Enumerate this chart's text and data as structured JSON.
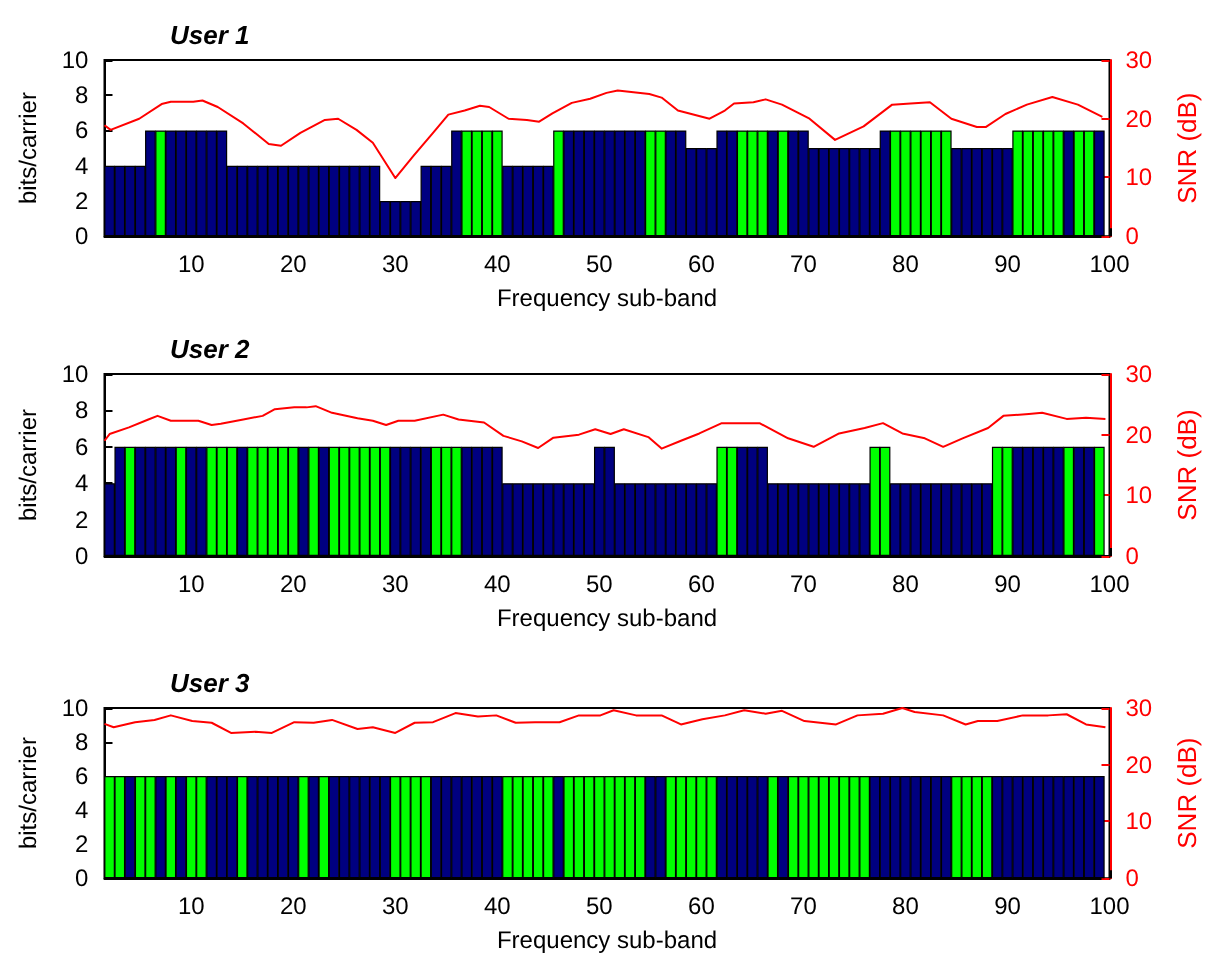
{
  "chart_data": [
    {
      "type": "bar",
      "title": "User 1",
      "xlabel": "Frequency sub-band",
      "ylabel": "bits/carrier",
      "y2label": "SNR (dB)",
      "x": [
        2,
        3,
        4,
        5,
        6,
        7,
        8,
        9,
        10,
        11,
        12,
        13,
        14,
        15,
        16,
        17,
        18,
        19,
        20,
        21,
        22,
        23,
        24,
        25,
        26,
        27,
        28,
        29,
        30,
        31,
        32,
        33,
        34,
        35,
        36,
        37,
        38,
        39,
        40,
        41,
        42,
        43,
        44,
        45,
        46,
        47,
        48,
        49,
        50,
        51,
        52,
        53,
        54,
        55,
        56,
        57,
        58,
        59,
        60,
        61,
        62,
        63,
        64,
        65,
        66,
        67,
        68,
        69,
        70,
        71,
        72,
        73,
        74,
        75,
        76,
        77,
        78,
        79,
        80,
        81,
        82,
        83,
        84,
        85,
        86,
        87,
        88,
        89,
        90,
        91,
        92,
        93,
        94,
        95,
        96,
        97,
        98,
        99
      ],
      "xlim": [
        1.5,
        100
      ],
      "xticks": [
        10,
        20,
        30,
        40,
        50,
        60,
        70,
        80,
        90,
        100
      ],
      "ylim": [
        0,
        10
      ],
      "yticks": [
        0,
        2,
        4,
        6,
        8,
        10
      ],
      "y2lim": [
        0,
        30
      ],
      "y2ticks": [
        0,
        10,
        20,
        30
      ],
      "series": [
        {
          "type": "bar",
          "values": [
            4,
            4,
            4,
            4,
            6,
            6,
            6,
            6,
            6,
            6,
            6,
            6,
            4,
            4,
            4,
            4,
            4,
            4,
            4,
            4,
            4,
            4,
            4,
            4,
            4,
            4,
            4,
            2,
            2,
            2,
            2,
            4,
            4,
            4,
            6,
            6,
            6,
            6,
            6,
            4,
            4,
            4,
            4,
            4,
            6,
            6,
            6,
            6,
            6,
            6,
            6,
            6,
            6,
            6,
            6,
            6,
            6,
            5,
            5,
            5,
            6,
            6,
            6,
            6,
            6,
            6,
            6,
            6,
            6,
            5,
            5,
            5,
            5,
            5,
            5,
            5,
            6,
            6,
            6,
            6,
            6,
            6,
            6,
            5,
            5,
            5,
            5,
            5,
            5,
            6,
            6,
            6,
            6,
            6,
            6,
            6,
            6,
            6
          ],
          "colors": [
            "#000080",
            "#000080",
            "#000080",
            "#000080",
            "#000080",
            "#00ff00",
            "#000080",
            "#000080",
            "#000080",
            "#000080",
            "#000080",
            "#000080",
            "#000080",
            "#000080",
            "#000080",
            "#000080",
            "#000080",
            "#000080",
            "#000080",
            "#000080",
            "#000080",
            "#000080",
            "#000080",
            "#000080",
            "#000080",
            "#000080",
            "#000080",
            "#000080",
            "#000080",
            "#000080",
            "#000080",
            "#000080",
            "#000080",
            "#000080",
            "#000080",
            "#00ff00",
            "#00ff00",
            "#00ff00",
            "#00ff00",
            "#000080",
            "#000080",
            "#000080",
            "#000080",
            "#000080",
            "#00ff00",
            "#000080",
            "#000080",
            "#000080",
            "#000080",
            "#000080",
            "#000080",
            "#000080",
            "#000080",
            "#00ff00",
            "#00ff00",
            "#000080",
            "#000080",
            "#000080",
            "#000080",
            "#000080",
            "#000080",
            "#000080",
            "#00ff00",
            "#00ff00",
            "#00ff00",
            "#000080",
            "#00ff00",
            "#000080",
            "#000080",
            "#000080",
            "#000080",
            "#000080",
            "#000080",
            "#000080",
            "#000080",
            "#000080",
            "#000080",
            "#00ff00",
            "#00ff00",
            "#00ff00",
            "#00ff00",
            "#00ff00",
            "#00ff00",
            "#000080",
            "#000080",
            "#000080",
            "#000080",
            "#000080",
            "#000080",
            "#00ff00",
            "#00ff00",
            "#00ff00",
            "#00ff00",
            "#00ff00",
            "#000080",
            "#00ff00",
            "#00ff00",
            "#000080"
          ]
        },
        {
          "type": "line",
          "axis": "y2",
          "color": "#ff0000",
          "x": [
            1.5,
            2.1,
            4.9,
            7.1,
            8,
            10.2,
            11.1,
            12.6,
            15.1,
            17.6,
            18.8,
            20.7,
            23.1,
            24.4,
            26.2,
            27.8,
            30,
            31.8,
            33.7,
            35.2,
            36.8,
            38.3,
            39.2,
            41.1,
            42.9,
            44.1,
            45.4,
            47.3,
            49.1,
            50.7,
            51.8,
            54.9,
            56.1,
            57.7,
            60.8,
            62.3,
            63.2,
            65.1,
            66.3,
            67.9,
            70.6,
            73.1,
            75.9,
            78.7,
            80.5,
            82.4,
            84.5,
            87,
            87.9,
            89.8,
            91.9,
            94.4,
            96.9,
            99.3
          ],
          "values": [
            18.9,
            18.1,
            20,
            22.5,
            22.9,
            22.9,
            23.1,
            22,
            19.2,
            15.7,
            15.4,
            17.6,
            19.8,
            20,
            18.1,
            15.9,
            9.9,
            13.7,
            17.6,
            20.7,
            21.4,
            22.2,
            22,
            20,
            19.8,
            19.5,
            20.9,
            22.7,
            23.4,
            24.4,
            24.8,
            24.2,
            23.6,
            21.4,
            20,
            21.4,
            22.6,
            22.8,
            23.3,
            22.4,
            20,
            16.4,
            18.7,
            22.4,
            22.6,
            22.8,
            20,
            18.6,
            18.6,
            20.8,
            22.4,
            23.7,
            22.4,
            20.3
          ]
        }
      ]
    },
    {
      "type": "bar",
      "title": "User 2",
      "xlabel": "Frequency sub-band",
      "ylabel": "bits/carrier",
      "y2label": "SNR (dB)",
      "x": [
        2,
        3,
        4,
        5,
        6,
        7,
        8,
        9,
        10,
        11,
        12,
        13,
        14,
        15,
        16,
        17,
        18,
        19,
        20,
        21,
        22,
        23,
        24,
        25,
        26,
        27,
        28,
        29,
        30,
        31,
        32,
        33,
        34,
        35,
        36,
        37,
        38,
        39,
        40,
        41,
        42,
        43,
        44,
        45,
        46,
        47,
        48,
        49,
        50,
        51,
        52,
        53,
        54,
        55,
        56,
        57,
        58,
        59,
        60,
        61,
        62,
        63,
        64,
        65,
        66,
        67,
        68,
        69,
        70,
        71,
        72,
        73,
        74,
        75,
        76,
        77,
        78,
        79,
        80,
        81,
        82,
        83,
        84,
        85,
        86,
        87,
        88,
        89,
        90,
        91,
        92,
        93,
        94,
        95,
        96,
        97,
        98,
        99
      ],
      "xlim": [
        1.5,
        100
      ],
      "xticks": [
        10,
        20,
        30,
        40,
        50,
        60,
        70,
        80,
        90,
        100
      ],
      "ylim": [
        0,
        10
      ],
      "yticks": [
        0,
        2,
        4,
        6,
        8,
        10
      ],
      "y2lim": [
        0,
        30
      ],
      "y2ticks": [
        0,
        10,
        20,
        30
      ],
      "series": [
        {
          "type": "bar",
          "values": [
            4,
            6,
            6,
            6,
            6,
            6,
            6,
            6,
            6,
            6,
            6,
            6,
            6,
            6,
            6,
            6,
            6,
            6,
            6,
            6,
            6,
            6,
            6,
            6,
            6,
            6,
            6,
            6,
            6,
            6,
            6,
            6,
            6,
            6,
            6,
            6,
            6,
            6,
            6,
            4,
            4,
            4,
            4,
            4,
            4,
            4,
            4,
            4,
            6,
            6,
            4,
            4,
            4,
            4,
            4,
            4,
            4,
            4,
            4,
            4,
            6,
            6,
            6,
            6,
            6,
            4,
            4,
            4,
            4,
            4,
            4,
            4,
            4,
            4,
            4,
            6,
            6,
            4,
            4,
            4,
            4,
            4,
            4,
            4,
            4,
            4,
            4,
            6,
            6,
            6,
            6,
            6,
            6,
            6,
            6,
            6,
            6,
            6
          ],
          "colors": [
            "#000080",
            "#000080",
            "#00ff00",
            "#000080",
            "#000080",
            "#000080",
            "#000080",
            "#00ff00",
            "#000080",
            "#000080",
            "#00ff00",
            "#00ff00",
            "#00ff00",
            "#000080",
            "#00ff00",
            "#00ff00",
            "#00ff00",
            "#00ff00",
            "#00ff00",
            "#000080",
            "#00ff00",
            "#000080",
            "#00ff00",
            "#00ff00",
            "#00ff00",
            "#00ff00",
            "#00ff00",
            "#00ff00",
            "#000080",
            "#000080",
            "#000080",
            "#000080",
            "#00ff00",
            "#00ff00",
            "#00ff00",
            "#000080",
            "#000080",
            "#000080",
            "#000080",
            "#000080",
            "#000080",
            "#000080",
            "#000080",
            "#000080",
            "#000080",
            "#000080",
            "#000080",
            "#000080",
            "#000080",
            "#000080",
            "#000080",
            "#000080",
            "#000080",
            "#000080",
            "#000080",
            "#000080",
            "#000080",
            "#000080",
            "#000080",
            "#000080",
            "#00ff00",
            "#00ff00",
            "#000080",
            "#000080",
            "#000080",
            "#000080",
            "#000080",
            "#000080",
            "#000080",
            "#000080",
            "#000080",
            "#000080",
            "#000080",
            "#000080",
            "#000080",
            "#00ff00",
            "#00ff00",
            "#000080",
            "#000080",
            "#000080",
            "#000080",
            "#000080",
            "#000080",
            "#000080",
            "#000080",
            "#000080",
            "#000080",
            "#00ff00",
            "#00ff00",
            "#000080",
            "#000080",
            "#000080",
            "#000080",
            "#000080",
            "#00ff00",
            "#000080",
            "#000080",
            "#00ff00"
          ]
        },
        {
          "type": "line",
          "axis": "y2",
          "color": "#ff0000",
          "x": [
            1.5,
            2,
            3.9,
            5.8,
            6.7,
            8,
            10.7,
            12,
            12.9,
            15.1,
            17,
            18.2,
            20.1,
            21.3,
            22.2,
            23.8,
            26.3,
            27.8,
            29.1,
            30.3,
            31.9,
            34.7,
            36.2,
            38.7,
            40.6,
            42.4,
            44,
            45.5,
            48,
            49.6,
            51.1,
            52.4,
            54.8,
            56.1,
            58,
            59.8,
            62,
            65.7,
            68.5,
            71,
            73.5,
            76,
            77.8,
            79.7,
            81.9,
            83.7,
            85.6,
            88.1,
            89.6,
            92.1,
            93.4,
            95.8,
            97.7,
            99.6
          ],
          "values": [
            19,
            20.1,
            21.2,
            22.5,
            23.1,
            22.3,
            22.3,
            21.6,
            21.8,
            22.5,
            23.1,
            24.2,
            24.5,
            24.5,
            24.7,
            23.6,
            22.7,
            22.3,
            21.6,
            22.3,
            22.3,
            23.3,
            22.5,
            22,
            19.8,
            18.9,
            17.8,
            19.5,
            20,
            20.9,
            20.1,
            20.9,
            19.6,
            17.7,
            19,
            20.2,
            21.9,
            21.9,
            19.4,
            18,
            20.2,
            21.1,
            21.9,
            20.2,
            19.4,
            18,
            19.4,
            21.1,
            23.1,
            23.4,
            23.6,
            22.6,
            22.8,
            22.6
          ]
        }
      ]
    },
    {
      "type": "bar",
      "title": "User 3",
      "xlabel": "Frequency sub-band",
      "ylabel": "bits/carrier",
      "y2label": "SNR (dB)",
      "x": [
        2,
        3,
        4,
        5,
        6,
        7,
        8,
        9,
        10,
        11,
        12,
        13,
        14,
        15,
        16,
        17,
        18,
        19,
        20,
        21,
        22,
        23,
        24,
        25,
        26,
        27,
        28,
        29,
        30,
        31,
        32,
        33,
        34,
        35,
        36,
        37,
        38,
        39,
        40,
        41,
        42,
        43,
        44,
        45,
        46,
        47,
        48,
        49,
        50,
        51,
        52,
        53,
        54,
        55,
        56,
        57,
        58,
        59,
        60,
        61,
        62,
        63,
        64,
        65,
        66,
        67,
        68,
        69,
        70,
        71,
        72,
        73,
        74,
        75,
        76,
        77,
        78,
        79,
        80,
        81,
        82,
        83,
        84,
        85,
        86,
        87,
        88,
        89,
        90,
        91,
        92,
        93,
        94,
        95,
        96,
        97,
        98,
        99
      ],
      "xlim": [
        1.5,
        100
      ],
      "xticks": [
        10,
        20,
        30,
        40,
        50,
        60,
        70,
        80,
        90,
        100
      ],
      "ylim": [
        0,
        10
      ],
      "yticks": [
        0,
        2,
        4,
        6,
        8,
        10
      ],
      "y2lim": [
        0,
        30
      ],
      "y2ticks": [
        0,
        10,
        20,
        30
      ],
      "series": [
        {
          "type": "bar",
          "values": [
            6,
            6,
            6,
            6,
            6,
            6,
            6,
            6,
            6,
            6,
            6,
            6,
            6,
            6,
            6,
            6,
            6,
            6,
            6,
            6,
            6,
            6,
            6,
            6,
            6,
            6,
            6,
            6,
            6,
            6,
            6,
            6,
            6,
            6,
            6,
            6,
            6,
            6,
            6,
            6,
            6,
            6,
            6,
            6,
            6,
            6,
            6,
            6,
            6,
            6,
            6,
            6,
            6,
            6,
            6,
            6,
            6,
            6,
            6,
            6,
            6,
            6,
            6,
            6,
            6,
            6,
            6,
            6,
            6,
            6,
            6,
            6,
            6,
            6,
            6,
            6,
            6,
            6,
            6,
            6,
            6,
            6,
            6,
            6,
            6,
            6,
            6,
            6,
            6,
            6,
            6,
            6,
            6,
            6,
            6,
            6,
            6,
            6
          ],
          "colors": [
            "#00ff00",
            "#00ff00",
            "#000080",
            "#00ff00",
            "#00ff00",
            "#000080",
            "#00ff00",
            "#000080",
            "#00ff00",
            "#00ff00",
            "#000080",
            "#000080",
            "#000080",
            "#00ff00",
            "#000080",
            "#000080",
            "#000080",
            "#000080",
            "#000080",
            "#00ff00",
            "#000080",
            "#00ff00",
            "#000080",
            "#000080",
            "#000080",
            "#000080",
            "#000080",
            "#000080",
            "#00ff00",
            "#00ff00",
            "#00ff00",
            "#00ff00",
            "#000080",
            "#000080",
            "#000080",
            "#000080",
            "#000080",
            "#000080",
            "#000080",
            "#00ff00",
            "#00ff00",
            "#00ff00",
            "#00ff00",
            "#00ff00",
            "#000080",
            "#00ff00",
            "#00ff00",
            "#00ff00",
            "#00ff00",
            "#00ff00",
            "#00ff00",
            "#00ff00",
            "#00ff00",
            "#000080",
            "#000080",
            "#00ff00",
            "#00ff00",
            "#00ff00",
            "#00ff00",
            "#00ff00",
            "#000080",
            "#000080",
            "#000080",
            "#000080",
            "#000080",
            "#00ff00",
            "#000080",
            "#00ff00",
            "#00ff00",
            "#00ff00",
            "#00ff00",
            "#00ff00",
            "#00ff00",
            "#00ff00",
            "#00ff00",
            "#000080",
            "#000080",
            "#000080",
            "#000080",
            "#000080",
            "#000080",
            "#000080",
            "#000080",
            "#00ff00",
            "#00ff00",
            "#00ff00",
            "#00ff00",
            "#000080",
            "#000080",
            "#000080",
            "#000080",
            "#000080",
            "#000080",
            "#000080",
            "#000080",
            "#000080",
            "#000080",
            "#000080"
          ]
        },
        {
          "type": "line",
          "axis": "y2",
          "color": "#ff0000",
          "x": [
            1.5,
            2.4,
            4.5,
            6.4,
            8,
            10.1,
            12,
            13.9,
            16.3,
            17.9,
            20.1,
            22,
            23.8,
            26.3,
            27.8,
            30,
            31.9,
            33.7,
            35.9,
            38.1,
            39.9,
            41.8,
            43.7,
            46.1,
            48,
            50.1,
            51.4,
            53.6,
            56.1,
            58,
            60.1,
            62.3,
            64.2,
            66.3,
            67.9,
            70.1,
            73.2,
            75.3,
            77.8,
            79.7,
            80.9,
            83.7,
            85.9,
            87.1,
            89,
            91.5,
            94,
            95.8,
            97.7,
            99.6
          ],
          "values": [
            27.2,
            26.6,
            27.5,
            27.9,
            28.7,
            27.7,
            27.4,
            25.6,
            25.8,
            25.6,
            27.5,
            27.4,
            27.9,
            26.3,
            26.6,
            25.6,
            27.4,
            27.5,
            29.1,
            28.5,
            28.7,
            27.4,
            27.5,
            27.5,
            28.7,
            28.7,
            29.6,
            28.7,
            28.7,
            27.1,
            28,
            28.7,
            29.6,
            29,
            29.5,
            27.7,
            27.1,
            28.7,
            29,
            30,
            29.3,
            28.7,
            27.1,
            27.7,
            27.7,
            28.7,
            28.7,
            28.9,
            27.1,
            26.6
          ]
        }
      ]
    }
  ]
}
